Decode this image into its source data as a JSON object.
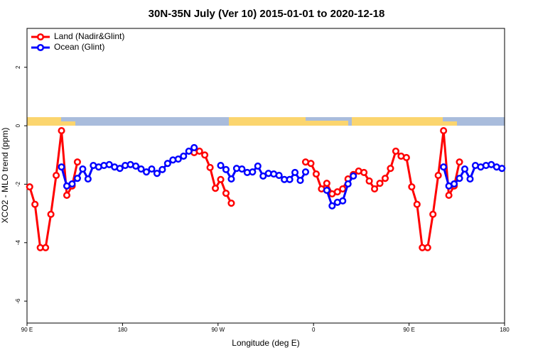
{
  "chart_data": {
    "type": "line",
    "title": "30N-35N July (Ver 10)   2015-01-01 to 2020-12-18",
    "x_label": "Longitude (deg E)",
    "y_label": "XCO2 - MLO trend (ppm)",
    "xlim": [
      90,
      540
    ],
    "ylim": [
      -6.75,
      3.33
    ],
    "xticks": [
      {
        "value": 90,
        "label": "90 E"
      },
      {
        "value": 180,
        "label": "180"
      },
      {
        "value": 270,
        "label": "90 W"
      },
      {
        "value": 360,
        "label": "0"
      },
      {
        "value": 450,
        "label": "90 E"
      },
      {
        "value": 540,
        "label": "180"
      }
    ],
    "yticks": [
      2,
      0,
      -2,
      -4,
      -6
    ],
    "legend": "top-left",
    "x": [
      92.5,
      97.5,
      102.5,
      107.5,
      112.5,
      117.5,
      122.5,
      127.5,
      132.5,
      137.5,
      142.5,
      147.5,
      152.5,
      157.5,
      162.5,
      167.5,
      172.5,
      177.5,
      182.5,
      187.5,
      192.5,
      197.5,
      202.5,
      207.5,
      212.5,
      217.5,
      222.5,
      227.5,
      232.5,
      237.5,
      242.5,
      247.5,
      252.5,
      257.5,
      262.5,
      267.5,
      272.5,
      277.5,
      282.5,
      287.5,
      292.5,
      297.5,
      302.5,
      307.5,
      312.5,
      317.5,
      322.5,
      327.5,
      332.5,
      337.5,
      342.5,
      347.5,
      352.5,
      357.5,
      362.5,
      367.5,
      372.5,
      377.5,
      382.5,
      387.5,
      392.5,
      397.5,
      402.5,
      407.5,
      412.5,
      417.5,
      422.5,
      427.5,
      432.5,
      437.5,
      442.5,
      447.5,
      452.5,
      457.5,
      462.5,
      467.5,
      472.5,
      477.5,
      482.5,
      487.5,
      492.5,
      497.5,
      502.5,
      507.5,
      512.5,
      517.5,
      522.5,
      527.5,
      532.5,
      537.5
    ],
    "series": [
      {
        "name": "Land (Nadir&Glint)",
        "color": "#ff0000",
        "values": [
          -2.09,
          -2.69,
          -4.17,
          -4.17,
          -3.03,
          -1.7,
          -0.17,
          -2.38,
          -2.06,
          -1.24,
          null,
          null,
          null,
          null,
          null,
          null,
          null,
          null,
          null,
          null,
          null,
          null,
          null,
          null,
          null,
          null,
          null,
          null,
          null,
          null,
          null,
          -0.92,
          -0.87,
          -1.0,
          -1.43,
          -2.14,
          -1.84,
          -2.31,
          -2.65,
          null,
          null,
          null,
          null,
          null,
          null,
          null,
          null,
          null,
          null,
          null,
          null,
          null,
          -1.24,
          -1.29,
          -1.65,
          -2.16,
          -1.97,
          -2.33,
          -2.26,
          -2.16,
          -1.82,
          -1.67,
          -1.55,
          -1.6,
          -1.89,
          -2.16,
          -1.97,
          -1.8,
          -1.46,
          -0.87,
          -1.04,
          -1.09,
          -2.09,
          -2.69,
          -4.17,
          -4.17,
          -3.03,
          -1.7,
          -0.17,
          -2.38,
          -2.06,
          -1.24,
          null,
          null,
          null,
          null,
          null,
          null,
          null,
          null
        ]
      },
      {
        "name": "Ocean (Glint)",
        "color": "#0000ff",
        "values": [
          null,
          null,
          null,
          null,
          null,
          null,
          -1.41,
          -2.06,
          -1.99,
          -1.8,
          -1.48,
          -1.82,
          -1.36,
          -1.41,
          -1.36,
          -1.33,
          -1.41,
          -1.46,
          -1.36,
          -1.33,
          -1.38,
          -1.48,
          -1.58,
          -1.48,
          -1.63,
          -1.5,
          -1.29,
          -1.17,
          -1.14,
          -1.04,
          -0.87,
          -0.75,
          null,
          null,
          null,
          null,
          -1.36,
          -1.5,
          -1.82,
          -1.46,
          -1.48,
          -1.6,
          -1.58,
          -1.38,
          -1.72,
          -1.63,
          -1.65,
          -1.7,
          -1.84,
          -1.84,
          -1.6,
          -1.87,
          -1.58,
          null,
          null,
          null,
          -2.21,
          -2.74,
          -2.62,
          -2.57,
          -1.99,
          -1.72,
          null,
          null,
          null,
          null,
          null,
          null,
          null,
          null,
          null,
          null,
          null,
          null,
          null,
          null,
          null,
          null,
          -1.41,
          -2.06,
          -1.99,
          -1.8,
          -1.48,
          -1.82,
          -1.36,
          -1.41,
          -1.36,
          -1.33,
          -1.41,
          -1.46
        ]
      }
    ]
  }
}
